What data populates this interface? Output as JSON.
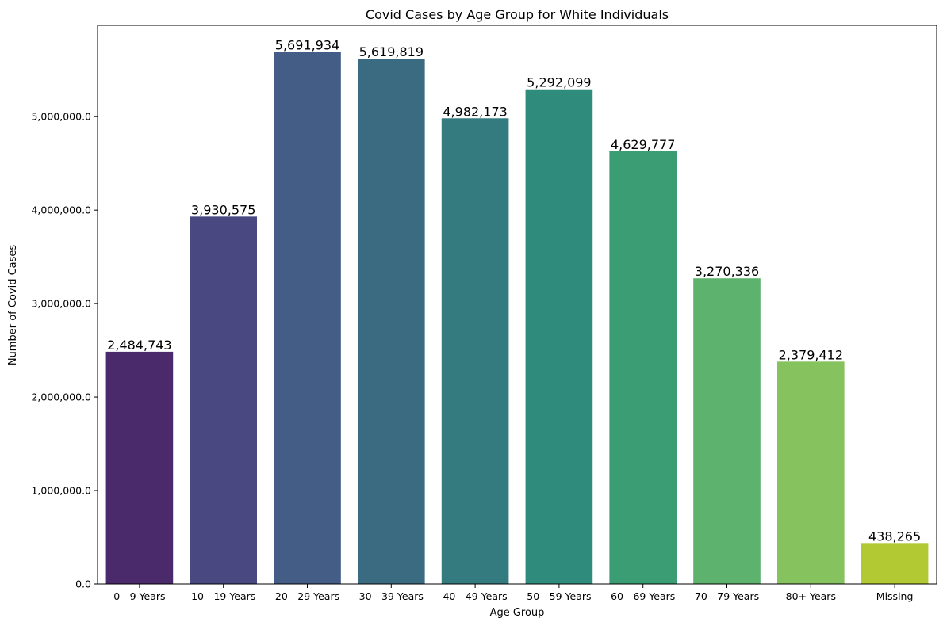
{
  "chart_data": {
    "type": "bar",
    "title": "Covid Cases by Age Group for White Individuals",
    "xlabel": "Age Group",
    "ylabel": "Number of Covid Cases",
    "categories": [
      "0 - 9 Years",
      "10 - 19 Years",
      "20 - 29 Years",
      "30 - 39 Years",
      "40 - 49 Years",
      "50 - 59 Years",
      "60 - 69 Years",
      "70 - 79 Years",
      "80+ Years",
      "Missing"
    ],
    "values": [
      2484743,
      3930575,
      5691934,
      5619819,
      4982173,
      5292099,
      4629777,
      3270336,
      2379412,
      438265
    ],
    "data_labels": [
      "2,484,743",
      "3,930,575",
      "5,691,934",
      "5,619,819",
      "4,982,173",
      "5,292,099",
      "4,629,777",
      "3,270,336",
      "2,379,412",
      "438,265"
    ],
    "colors": [
      "#4a2a6a",
      "#4a4880",
      "#435d86",
      "#3a6b80",
      "#347b7f",
      "#2f8b7c",
      "#3a9d74",
      "#5db36d",
      "#86c25d",
      "#b3c933"
    ],
    "yticks": [
      0,
      1000000,
      2000000,
      3000000,
      4000000,
      5000000
    ],
    "ytick_labels": [
      "0.0",
      "1,000,000.0",
      "2,000,000.0",
      "3,000,000.0",
      "4,000,000.0",
      "5,000,000.0"
    ],
    "ylim": [
      0,
      5976531
    ],
    "grid": false,
    "legend": "none"
  }
}
